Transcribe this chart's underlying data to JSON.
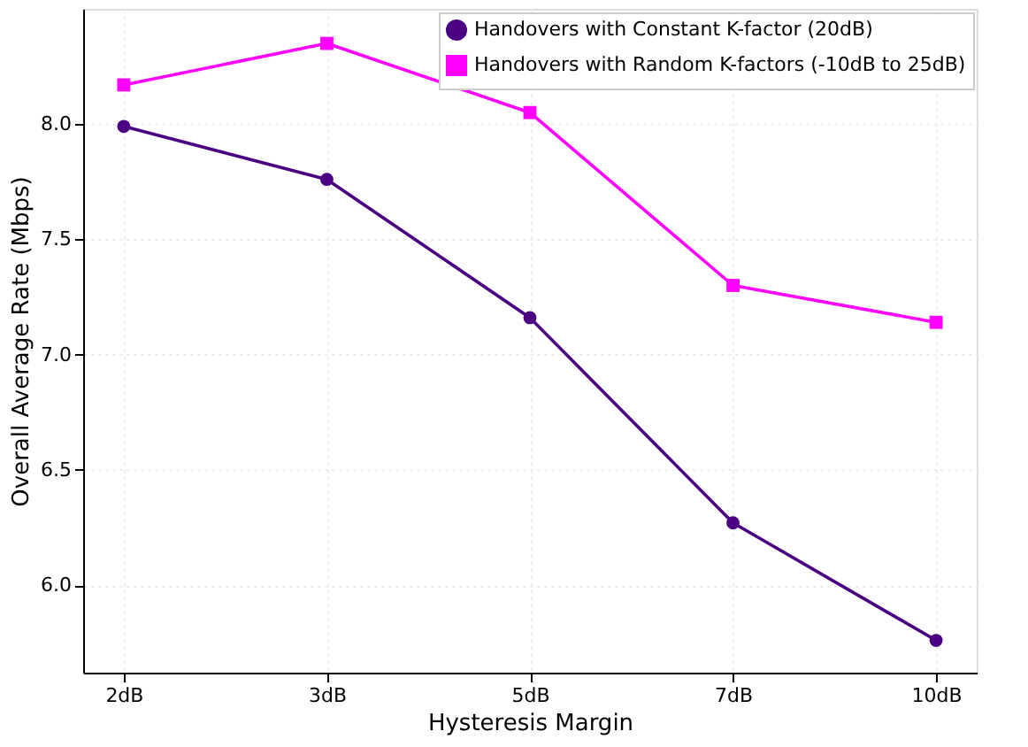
{
  "chart_data": {
    "type": "line",
    "xlabel": "Hysteresis Margin",
    "ylabel": "Overall Average Rate (Mbps)",
    "categories": [
      "2dB",
      "3dB",
      "5dB",
      "7dB",
      "10dB"
    ],
    "series": [
      {
        "name": "Handovers with Constant K-factor (20dB)",
        "color": "#4b0082",
        "marker": "circle",
        "values": [
          7.99,
          7.76,
          7.16,
          6.27,
          5.76
        ]
      },
      {
        "name": "Handovers with Random K-factors (-10dB to 25dB)",
        "color": "#ff00ff",
        "marker": "square",
        "values": [
          8.17,
          8.35,
          8.05,
          7.3,
          7.14
        ]
      }
    ],
    "ylim": [
      5.62,
      8.5
    ],
    "yticks": [
      {
        "value": 6.0,
        "label": "6.0"
      },
      {
        "value": 6.5,
        "label": "6.5"
      },
      {
        "value": 7.0,
        "label": "7.0"
      },
      {
        "value": 7.5,
        "label": "7.5"
      },
      {
        "value": 8.0,
        "label": "8.0"
      }
    ],
    "grid": true,
    "legend": "top right",
    "line_style": "solid"
  }
}
